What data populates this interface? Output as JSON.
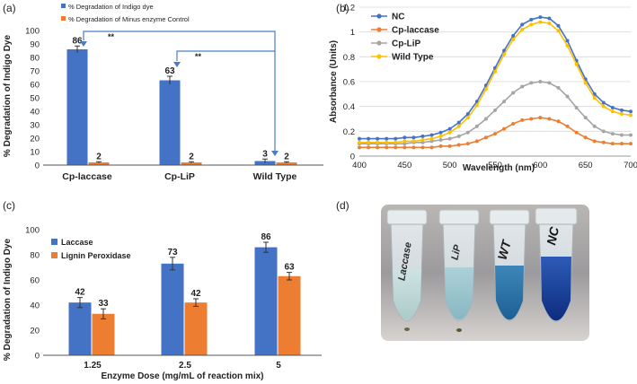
{
  "colors": {
    "blue": "#4472C4",
    "orange": "#ED7D31",
    "gray": "#A5A5A5",
    "yellow": "#FFC000",
    "axis": "#444444",
    "arrow": "#4a7dc4"
  },
  "chart_data": [
    {
      "panel_label": "(a)",
      "type": "bar",
      "ylabel": "% Degradation of Indigo Dye",
      "ylim": [
        0,
        100
      ],
      "yticks": [
        "0",
        "10",
        "20",
        "30",
        "40",
        "50",
        "60",
        "70",
        "80",
        "90",
        "100"
      ],
      "categories": [
        "Cp-laccase",
        "Cp-LiP",
        "Wild Type"
      ],
      "series": [
        {
          "name": "% Degradation of Indigo dye",
          "values": [
            86,
            63,
            3
          ],
          "errors": [
            2.5,
            3,
            1.5
          ],
          "labels": [
            "86",
            "63",
            "3"
          ]
        },
        {
          "name": "% Degradation of Minus enzyme Control",
          "values": [
            2,
            2,
            2
          ],
          "errors": [
            0.5,
            0.5,
            0.5
          ],
          "labels": [
            "2",
            "2",
            "2"
          ]
        }
      ],
      "annotations": [
        "**",
        "**"
      ],
      "legend": "top"
    },
    {
      "panel_label": "(b)",
      "type": "line",
      "xlabel": "Wavelength (nm)",
      "ylabel": "Absorbance (Units)",
      "xlim": [
        400,
        700
      ],
      "ylim": [
        0,
        1.2
      ],
      "xticks": [
        "400",
        "450",
        "500",
        "550",
        "600",
        "650",
        "700"
      ],
      "yticks": [
        "0",
        "0.2",
        "0.4",
        "0.6",
        "0.8",
        "1",
        "1.2"
      ],
      "x": [
        400,
        410,
        420,
        430,
        440,
        450,
        460,
        470,
        480,
        490,
        500,
        510,
        520,
        530,
        540,
        550,
        560,
        570,
        580,
        590,
        600,
        610,
        620,
        630,
        640,
        650,
        660,
        670,
        680,
        690,
        700
      ],
      "series": [
        {
          "name": "NC",
          "values": [
            0.14,
            0.14,
            0.14,
            0.14,
            0.14,
            0.15,
            0.15,
            0.16,
            0.17,
            0.19,
            0.22,
            0.27,
            0.34,
            0.44,
            0.57,
            0.71,
            0.85,
            0.97,
            1.06,
            1.1,
            1.12,
            1.11,
            1.05,
            0.93,
            0.77,
            0.62,
            0.5,
            0.43,
            0.39,
            0.37,
            0.36
          ]
        },
        {
          "name": "Cp-laccase",
          "values": [
            0.07,
            0.07,
            0.07,
            0.07,
            0.07,
            0.07,
            0.07,
            0.07,
            0.07,
            0.08,
            0.08,
            0.09,
            0.1,
            0.12,
            0.15,
            0.18,
            0.22,
            0.26,
            0.29,
            0.3,
            0.31,
            0.3,
            0.28,
            0.24,
            0.19,
            0.15,
            0.12,
            0.11,
            0.1,
            0.1,
            0.1
          ]
        },
        {
          "name": "Cp-LiP",
          "values": [
            0.1,
            0.1,
            0.1,
            0.1,
            0.1,
            0.1,
            0.11,
            0.11,
            0.12,
            0.13,
            0.14,
            0.16,
            0.19,
            0.24,
            0.3,
            0.37,
            0.44,
            0.51,
            0.56,
            0.59,
            0.6,
            0.59,
            0.55,
            0.48,
            0.39,
            0.31,
            0.24,
            0.2,
            0.18,
            0.17,
            0.17
          ]
        },
        {
          "name": "Wild Type",
          "values": [
            0.11,
            0.11,
            0.11,
            0.11,
            0.11,
            0.12,
            0.12,
            0.13,
            0.14,
            0.16,
            0.19,
            0.24,
            0.31,
            0.41,
            0.54,
            0.68,
            0.82,
            0.94,
            1.02,
            1.06,
            1.08,
            1.07,
            1.01,
            0.89,
            0.74,
            0.59,
            0.47,
            0.4,
            0.36,
            0.34,
            0.33
          ]
        }
      ],
      "legend": "top-left"
    },
    {
      "panel_label": "(c)",
      "type": "bar",
      "xlabel": "Enzyme Dose (mg/mL of reaction mix)",
      "ylabel": "% Degradation of Indigo Dye",
      "ylim": [
        0,
        100
      ],
      "yticks": [
        "0",
        "20",
        "40",
        "60",
        "80",
        "100"
      ],
      "categories": [
        "1.25",
        "2.5",
        "5"
      ],
      "series": [
        {
          "name": "Laccase",
          "values": [
            42,
            73,
            86
          ],
          "errors": [
            4,
            5,
            4
          ],
          "labels": [
            "42",
            "73",
            "86"
          ]
        },
        {
          "name": "Lignin Peroxidase",
          "values": [
            33,
            42,
            63
          ],
          "errors": [
            4,
            3,
            3
          ],
          "labels": [
            "33",
            "42",
            "63"
          ]
        }
      ],
      "legend": "top-left"
    }
  ],
  "photo": {
    "panel_label": "(d)",
    "tube_labels": [
      "Laccase",
      "LiP",
      "WT",
      "NC"
    ]
  }
}
